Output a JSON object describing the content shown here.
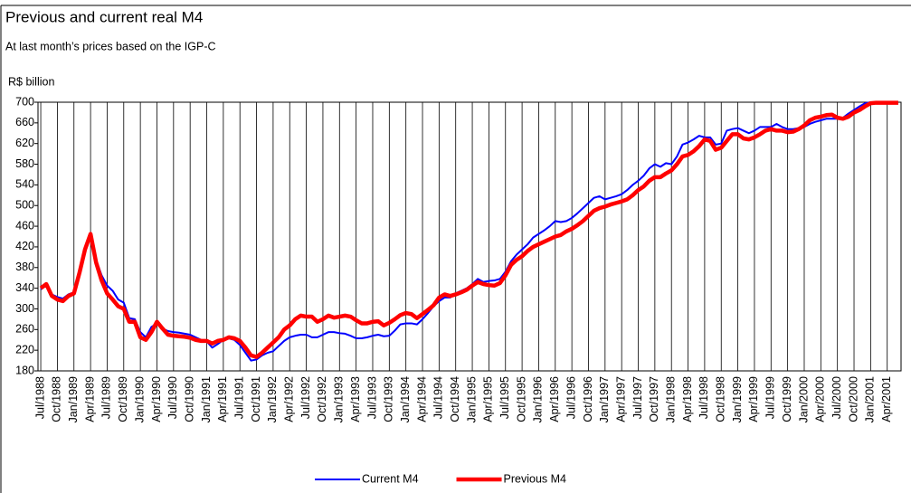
{
  "chart_data": {
    "type": "line",
    "title": "Previous and current real M4",
    "subtitle": "At last month’s prices based on the IGP-C",
    "y_label": "R$ billion",
    "categories": [
      "Jul/1988",
      null,
      null,
      "Oct/1988",
      null,
      null,
      "Jan/1989",
      null,
      null,
      "Apr/1989",
      null,
      null,
      "Jul/1989",
      null,
      null,
      "Oct/1989",
      null,
      null,
      "Jan/1990",
      null,
      null,
      "Apr/1990",
      null,
      null,
      "Jul/1990",
      null,
      null,
      "Oct/1990",
      null,
      null,
      "Jan/1991",
      null,
      null,
      "Apr/1991",
      null,
      null,
      "Jul/1991",
      null,
      null,
      "Oct/1991",
      null,
      null,
      "Jan/1992",
      null,
      null,
      "Apr/1992",
      null,
      null,
      "Jul/1992",
      null,
      null,
      "Oct/1992",
      null,
      null,
      "Jan/1993",
      null,
      null,
      "Apr/1993",
      null,
      null,
      "Jul/1993",
      null,
      null,
      "Oct/1993",
      null,
      null,
      "Jan/1994",
      null,
      null,
      "Apr/1994",
      null,
      null,
      "Jul/1994",
      null,
      null,
      "Oct/1994",
      null,
      null,
      "Jan/1995",
      null,
      null,
      "Apr/1995",
      null,
      null,
      "Jul/1995",
      null,
      null,
      "Oct/1995",
      null,
      null,
      "Jan/1996",
      null,
      null,
      "Apr/1996",
      null,
      null,
      "Jul/1996",
      null,
      null,
      "Oct/1996",
      null,
      null,
      "Jan/1997",
      null,
      null,
      "Apr/1997",
      null,
      null,
      "Jul/1997",
      null,
      null,
      "Oct/1997",
      null,
      null,
      "Jan/1998",
      null,
      null,
      "Apr/1998",
      null,
      null,
      "Jul/1998",
      null,
      null,
      "Oct/1998",
      null,
      null,
      "Jan/1999",
      null,
      null,
      "Apr/1999",
      null,
      null,
      "Jul/1999",
      null,
      null,
      "Oct/1999",
      null,
      null,
      "Jan/2000",
      null,
      null,
      "Apr/2000",
      null,
      null,
      "Jul/2000",
      null,
      null,
      "Oct/2000",
      null,
      null,
      "Jan/2001",
      null,
      null,
      "Apr/2001",
      null,
      null
    ],
    "series": [
      {
        "name": "Current M4",
        "color": "#0000ff",
        "width": 2,
        "values": [
          338,
          345,
          328,
          323,
          320,
          328,
          332,
          368,
          412,
          440,
          395,
          365,
          345,
          335,
          318,
          312,
          282,
          280,
          255,
          245,
          265,
          272,
          262,
          257,
          255,
          254,
          252,
          250,
          245,
          240,
          237,
          225,
          232,
          240,
          243,
          240,
          230,
          215,
          200,
          202,
          210,
          215,
          218,
          228,
          238,
          245,
          248,
          250,
          250,
          245,
          245,
          250,
          255,
          255,
          253,
          252,
          248,
          243,
          243,
          245,
          248,
          250,
          247,
          248,
          258,
          270,
          272,
          272,
          270,
          280,
          292,
          305,
          315,
          322,
          322,
          330,
          335,
          340,
          348,
          358,
          352,
          354,
          355,
          358,
          372,
          392,
          405,
          415,
          425,
          438,
          445,
          452,
          460,
          470,
          468,
          470,
          476,
          485,
          495,
          505,
          515,
          518,
          512,
          515,
          518,
          522,
          530,
          540,
          548,
          558,
          572,
          580,
          575,
          582,
          580,
          595,
          618,
          622,
          628,
          635,
          632,
          632,
          618,
          620,
          645,
          648,
          650,
          645,
          640,
          645,
          652,
          652,
          652,
          658,
          652,
          648,
          648,
          650,
          652,
          658,
          662,
          665,
          668,
          668,
          668,
          670,
          678,
          685,
          692,
          698,
          700,
          700,
          700,
          700,
          700,
          700
        ]
      },
      {
        "name": "Previous M4",
        "color": "#ff0000",
        "width": 4.5,
        "values": [
          340,
          348,
          325,
          318,
          315,
          325,
          330,
          370,
          415,
          445,
          390,
          355,
          330,
          318,
          305,
          300,
          275,
          275,
          245,
          240,
          255,
          275,
          262,
          250,
          248,
          247,
          246,
          244,
          240,
          238,
          238,
          233,
          238,
          240,
          245,
          243,
          238,
          225,
          210,
          207,
          215,
          225,
          235,
          245,
          260,
          268,
          280,
          287,
          285,
          285,
          275,
          280,
          287,
          283,
          285,
          287,
          285,
          278,
          272,
          272,
          275,
          276,
          268,
          273,
          280,
          288,
          292,
          290,
          282,
          290,
          298,
          307,
          322,
          328,
          325,
          328,
          332,
          337,
          345,
          352,
          348,
          346,
          345,
          350,
          365,
          385,
          395,
          402,
          412,
          420,
          425,
          430,
          435,
          440,
          443,
          450,
          455,
          462,
          470,
          480,
          490,
          495,
          498,
          502,
          505,
          508,
          512,
          520,
          530,
          537,
          548,
          555,
          555,
          562,
          568,
          580,
          595,
          598,
          605,
          615,
          628,
          625,
          608,
          612,
          625,
          638,
          638,
          630,
          628,
          632,
          638,
          645,
          648,
          645,
          645,
          642,
          643,
          648,
          655,
          665,
          670,
          672,
          675,
          676,
          670,
          668,
          672,
          680,
          685,
          692,
          698,
          699,
          699,
          699,
          699,
          699
        ]
      }
    ],
    "ylim": [
      180,
      700
    ],
    "yticks": [
      180,
      220,
      260,
      300,
      340,
      380,
      420,
      460,
      500,
      540,
      580,
      620,
      660,
      700
    ],
    "grid": "x",
    "legend": "bottom"
  }
}
